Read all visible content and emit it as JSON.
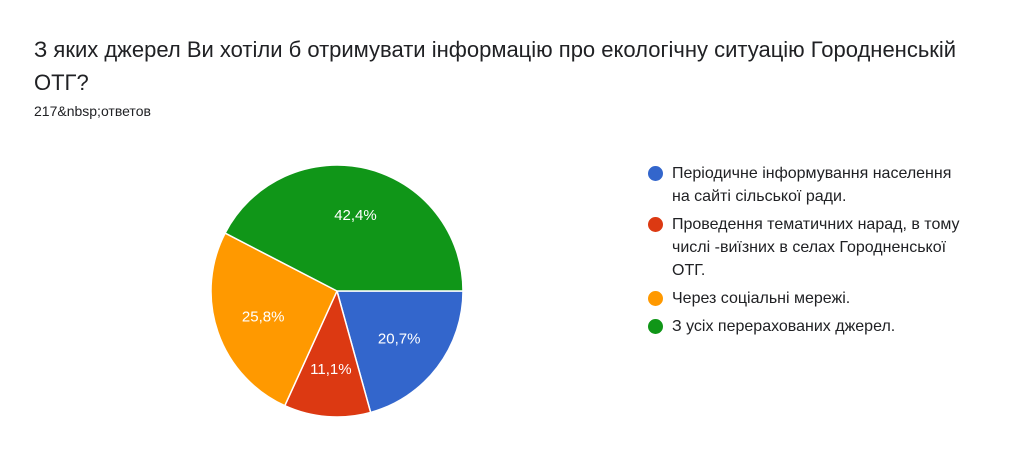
{
  "question": {
    "title": "З яких джерел Ви хотіли б отримувати інформацію про екологічну ситуацію Городненській ОТГ?",
    "responses": "217&nbsp;ответов"
  },
  "chart_data": {
    "type": "pie",
    "start_angle_deg": 90,
    "direction": "clockwise",
    "slices": [
      {
        "label": "Періодичне інформування населення на сайті сільської ради.",
        "value": 20.7,
        "value_label": "20,7%",
        "color": "#3366cc"
      },
      {
        "label": "Проведення тематичних нарад, в тому числі -виїзних в селах Городненської ОТГ.",
        "value": 11.1,
        "value_label": "11,1%",
        "color": "#dc3912"
      },
      {
        "label": "Через соціальні мережі.",
        "value": 25.8,
        "value_label": "25,8%",
        "color": "#ff9900"
      },
      {
        "label": "З усіх перерахованих джерел.",
        "value": 42.4,
        "value_label": "42,4%",
        "color": "#109618"
      }
    ]
  }
}
